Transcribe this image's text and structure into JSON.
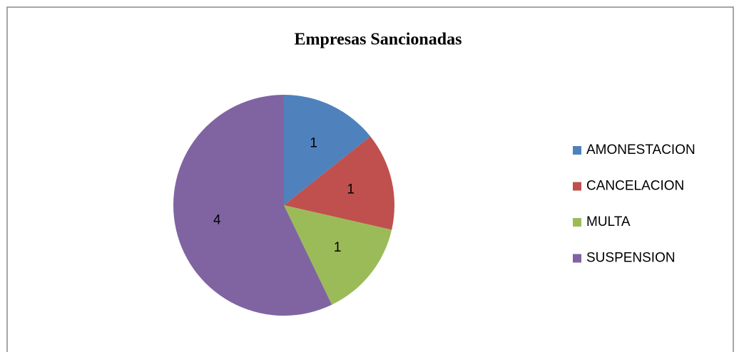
{
  "chart_data": {
    "type": "pie",
    "title": "Empresas Sancionadas",
    "categories": [
      "AMONESTACION",
      "CANCELACION",
      "MULTA",
      "SUSPENSION"
    ],
    "values": [
      1,
      1,
      1,
      4
    ],
    "colors": [
      "#4f81bd",
      "#c0504d",
      "#9bbb59",
      "#8064a2"
    ],
    "legend": "right",
    "data_labels": true
  }
}
